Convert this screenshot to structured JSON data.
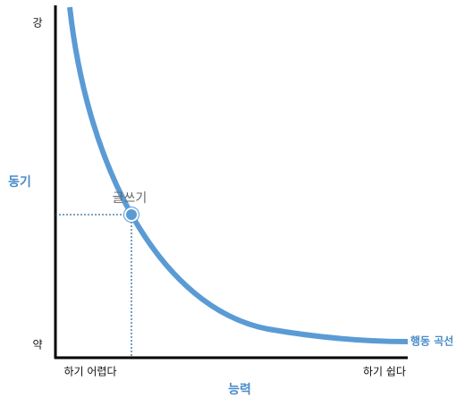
{
  "axes": {
    "y_top": "강",
    "y_bottom": "약",
    "y_title": "동기",
    "x_left": "하기 어렵다",
    "x_right": "하기 쉽다",
    "x_title": "능력"
  },
  "curve": {
    "label": "행동 곡선"
  },
  "point": {
    "label": "글쓰기"
  }
}
